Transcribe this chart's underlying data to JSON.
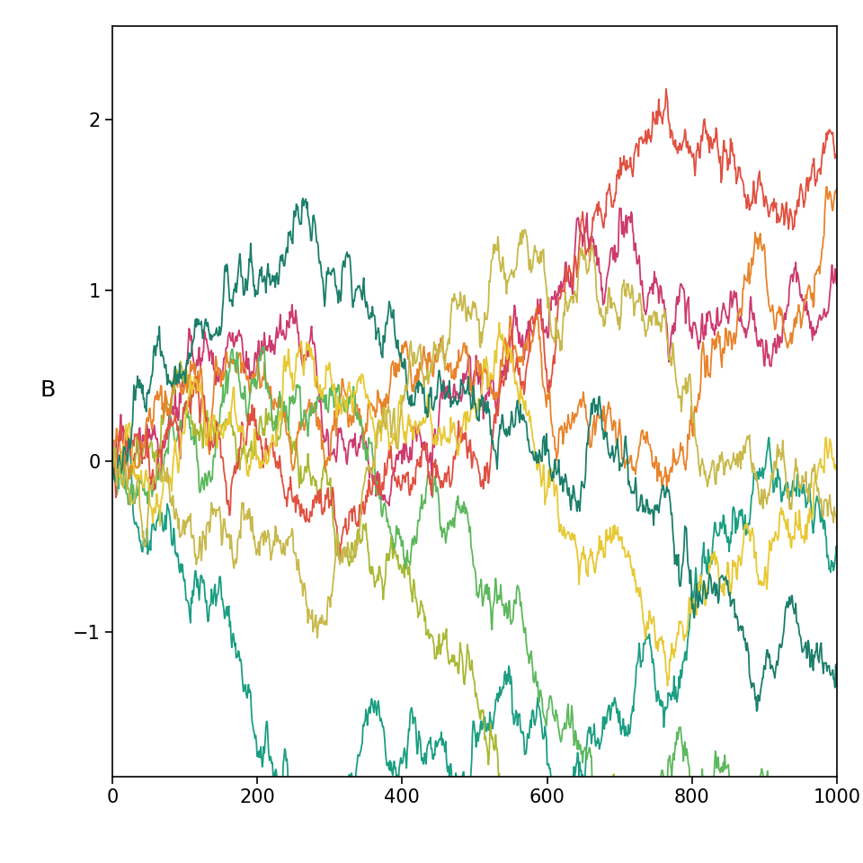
{
  "n_steps": 1000,
  "colors": [
    "#1a9e82",
    "#cc3a6e",
    "#a8b832",
    "#e8832a",
    "#5cb85c",
    "#e05040",
    "#e8c832",
    "#1a7e6a",
    "#c8b84a"
  ],
  "line_width": 1.3,
  "xlabel": "",
  "ylabel": "B",
  "xlim": [
    0,
    1000
  ],
  "ylim": [
    -1.85,
    2.55
  ],
  "xticks": [
    0,
    200,
    400,
    600,
    800,
    1000
  ],
  "yticks": [
    -1,
    0,
    1,
    2
  ],
  "background_color": "#ffffff",
  "title": "",
  "ylabel_fontsize": 18,
  "tick_fontsize": 15,
  "scale": 0.048
}
